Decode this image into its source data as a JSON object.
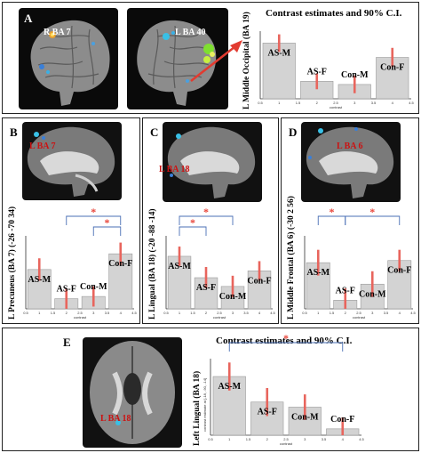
{
  "colors": {
    "bar": "#d3d3d3",
    "err": "#e8655d",
    "sig": "#e8473c",
    "bracket": "#4a6fb5",
    "region": "#cc1111"
  },
  "panels": {
    "A": {
      "label": "A",
      "regions": [
        "R BA 7",
        "L BA 40"
      ]
    },
    "B": {
      "label": "B",
      "regions": [
        "L BA 7"
      ]
    },
    "C": {
      "label": "C",
      "regions": [
        "L BA 18"
      ]
    },
    "D": {
      "label": "D",
      "regions": [
        "L BA 6"
      ]
    },
    "E": {
      "label": "E",
      "regions": [
        "L BA 18"
      ]
    }
  },
  "chart_data": [
    {
      "id": "A",
      "type": "bar",
      "title": "Contrast estimates and 90% C.I.",
      "ylabel": "L Middle Occipital (BA 19)",
      "categories": [
        "AS-M",
        "AS-F",
        "Con-M",
        "Con-F"
      ],
      "values": [
        7.0,
        2.2,
        1.8,
        5.2
      ],
      "err": [
        1.1,
        1.0,
        1.1,
        1.2
      ],
      "ylim": [
        0,
        8.5
      ],
      "xticks": [
        "0.5",
        "1",
        "1.5",
        "2",
        "2.5",
        "3",
        "3.5",
        "4",
        "4.5"
      ],
      "xlabel": "contrast",
      "sig": []
    },
    {
      "id": "B",
      "type": "bar",
      "title": "",
      "ylabel": "L Precuneus (BA 7) (-26 -70 34)",
      "categories": [
        "AS-M",
        "AS-F",
        "Con-M",
        "Con-F"
      ],
      "values": [
        3.5,
        0.9,
        1.1,
        4.9
      ],
      "err": [
        1.0,
        0.9,
        0.9,
        1.0
      ],
      "ylim": [
        0,
        6.5
      ],
      "xticks": [
        "0.5",
        "1",
        "1.5",
        "2",
        "2.5",
        "3",
        "3.5",
        "4",
        "4.5"
      ],
      "xlabel": "contrast",
      "sig": [
        {
          "from": 1,
          "to": 3,
          "level": 0
        },
        {
          "from": 2,
          "to": 3,
          "level": 1
        }
      ],
      "star": "*"
    },
    {
      "id": "C",
      "type": "bar",
      "title": "",
      "ylabel": "L Lingual (BA 18) (-20 -88 -14)",
      "categories": [
        "AS-M",
        "AS-F",
        "Con-M",
        "Con-F"
      ],
      "values": [
        5.4,
        3.2,
        2.3,
        3.9
      ],
      "err": [
        1.0,
        1.1,
        1.1,
        1.0
      ],
      "ylim": [
        0,
        7.5
      ],
      "xticks": [
        "0.5",
        "1",
        "1.5",
        "2",
        "2.5",
        "3",
        "3.5",
        "4",
        "4.5"
      ],
      "xlabel": "contrast",
      "sig": [
        {
          "from": 0,
          "to": 2,
          "level": 0
        },
        {
          "from": 0,
          "to": 1,
          "level": 1
        }
      ],
      "star": "*"
    },
    {
      "id": "D",
      "type": "bar",
      "title": "",
      "ylabel": "L Middle Frontal (BA 6) (-30 2 56)",
      "categories": [
        "AS-M",
        "AS-F",
        "Con-M",
        "Con-F"
      ],
      "values": [
        4.3,
        0.8,
        2.3,
        4.5
      ],
      "err": [
        1.2,
        1.1,
        1.2,
        1.0
      ],
      "ylim": [
        0,
        6.8
      ],
      "xticks": [
        "0.5",
        "1",
        "1.5",
        "2",
        "2.5",
        "3",
        "3.5",
        "4",
        "4.5"
      ],
      "xlabel": "contrast",
      "sig": [
        {
          "from": 0,
          "to": 1,
          "level": 0
        },
        {
          "from": 1,
          "to": 3,
          "level": 0
        }
      ],
      "star": "*"
    },
    {
      "id": "E",
      "type": "bar",
      "title": "Contrast estimates and 90% C.I.",
      "ylabel": "Left Lingual (BA 18)",
      "categories": [
        "AS-M",
        "AS-F",
        "Con-M",
        "Con-F"
      ],
      "values": [
        4.6,
        2.6,
        2.2,
        0.5
      ],
      "err": [
        1.1,
        1.1,
        1.0,
        0.9
      ],
      "ylim": [
        0,
        6.0
      ],
      "xticks": [
        "0.5",
        "1",
        "1.5",
        "2",
        "2.5",
        "3",
        "3.5",
        "4",
        "4.5"
      ],
      "xlabel": "contrast",
      "yaxis_note": "contrast estimate at [-18, -90, -14]",
      "sig": [
        {
          "from": 0,
          "to": 3,
          "level": 0
        }
      ],
      "star": "*"
    }
  ]
}
